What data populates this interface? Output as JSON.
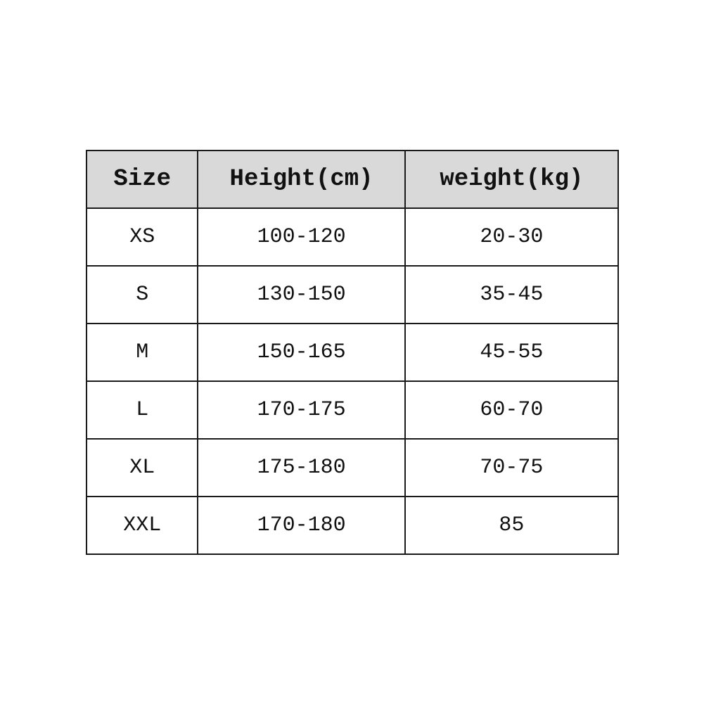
{
  "table": {
    "headers": [
      "Size",
      "Height(cm)",
      "weight(kg)"
    ],
    "rows": [
      [
        "XS",
        "100-120",
        "20-30"
      ],
      [
        "S",
        "130-150",
        "35-45"
      ],
      [
        "M",
        "150-165",
        "45-55"
      ],
      [
        "L",
        "170-175",
        "60-70"
      ],
      [
        "XL",
        "175-180",
        "70-75"
      ],
      [
        "XXL",
        "170-180",
        "85"
      ]
    ],
    "header_bg": "#d9d9d9"
  }
}
